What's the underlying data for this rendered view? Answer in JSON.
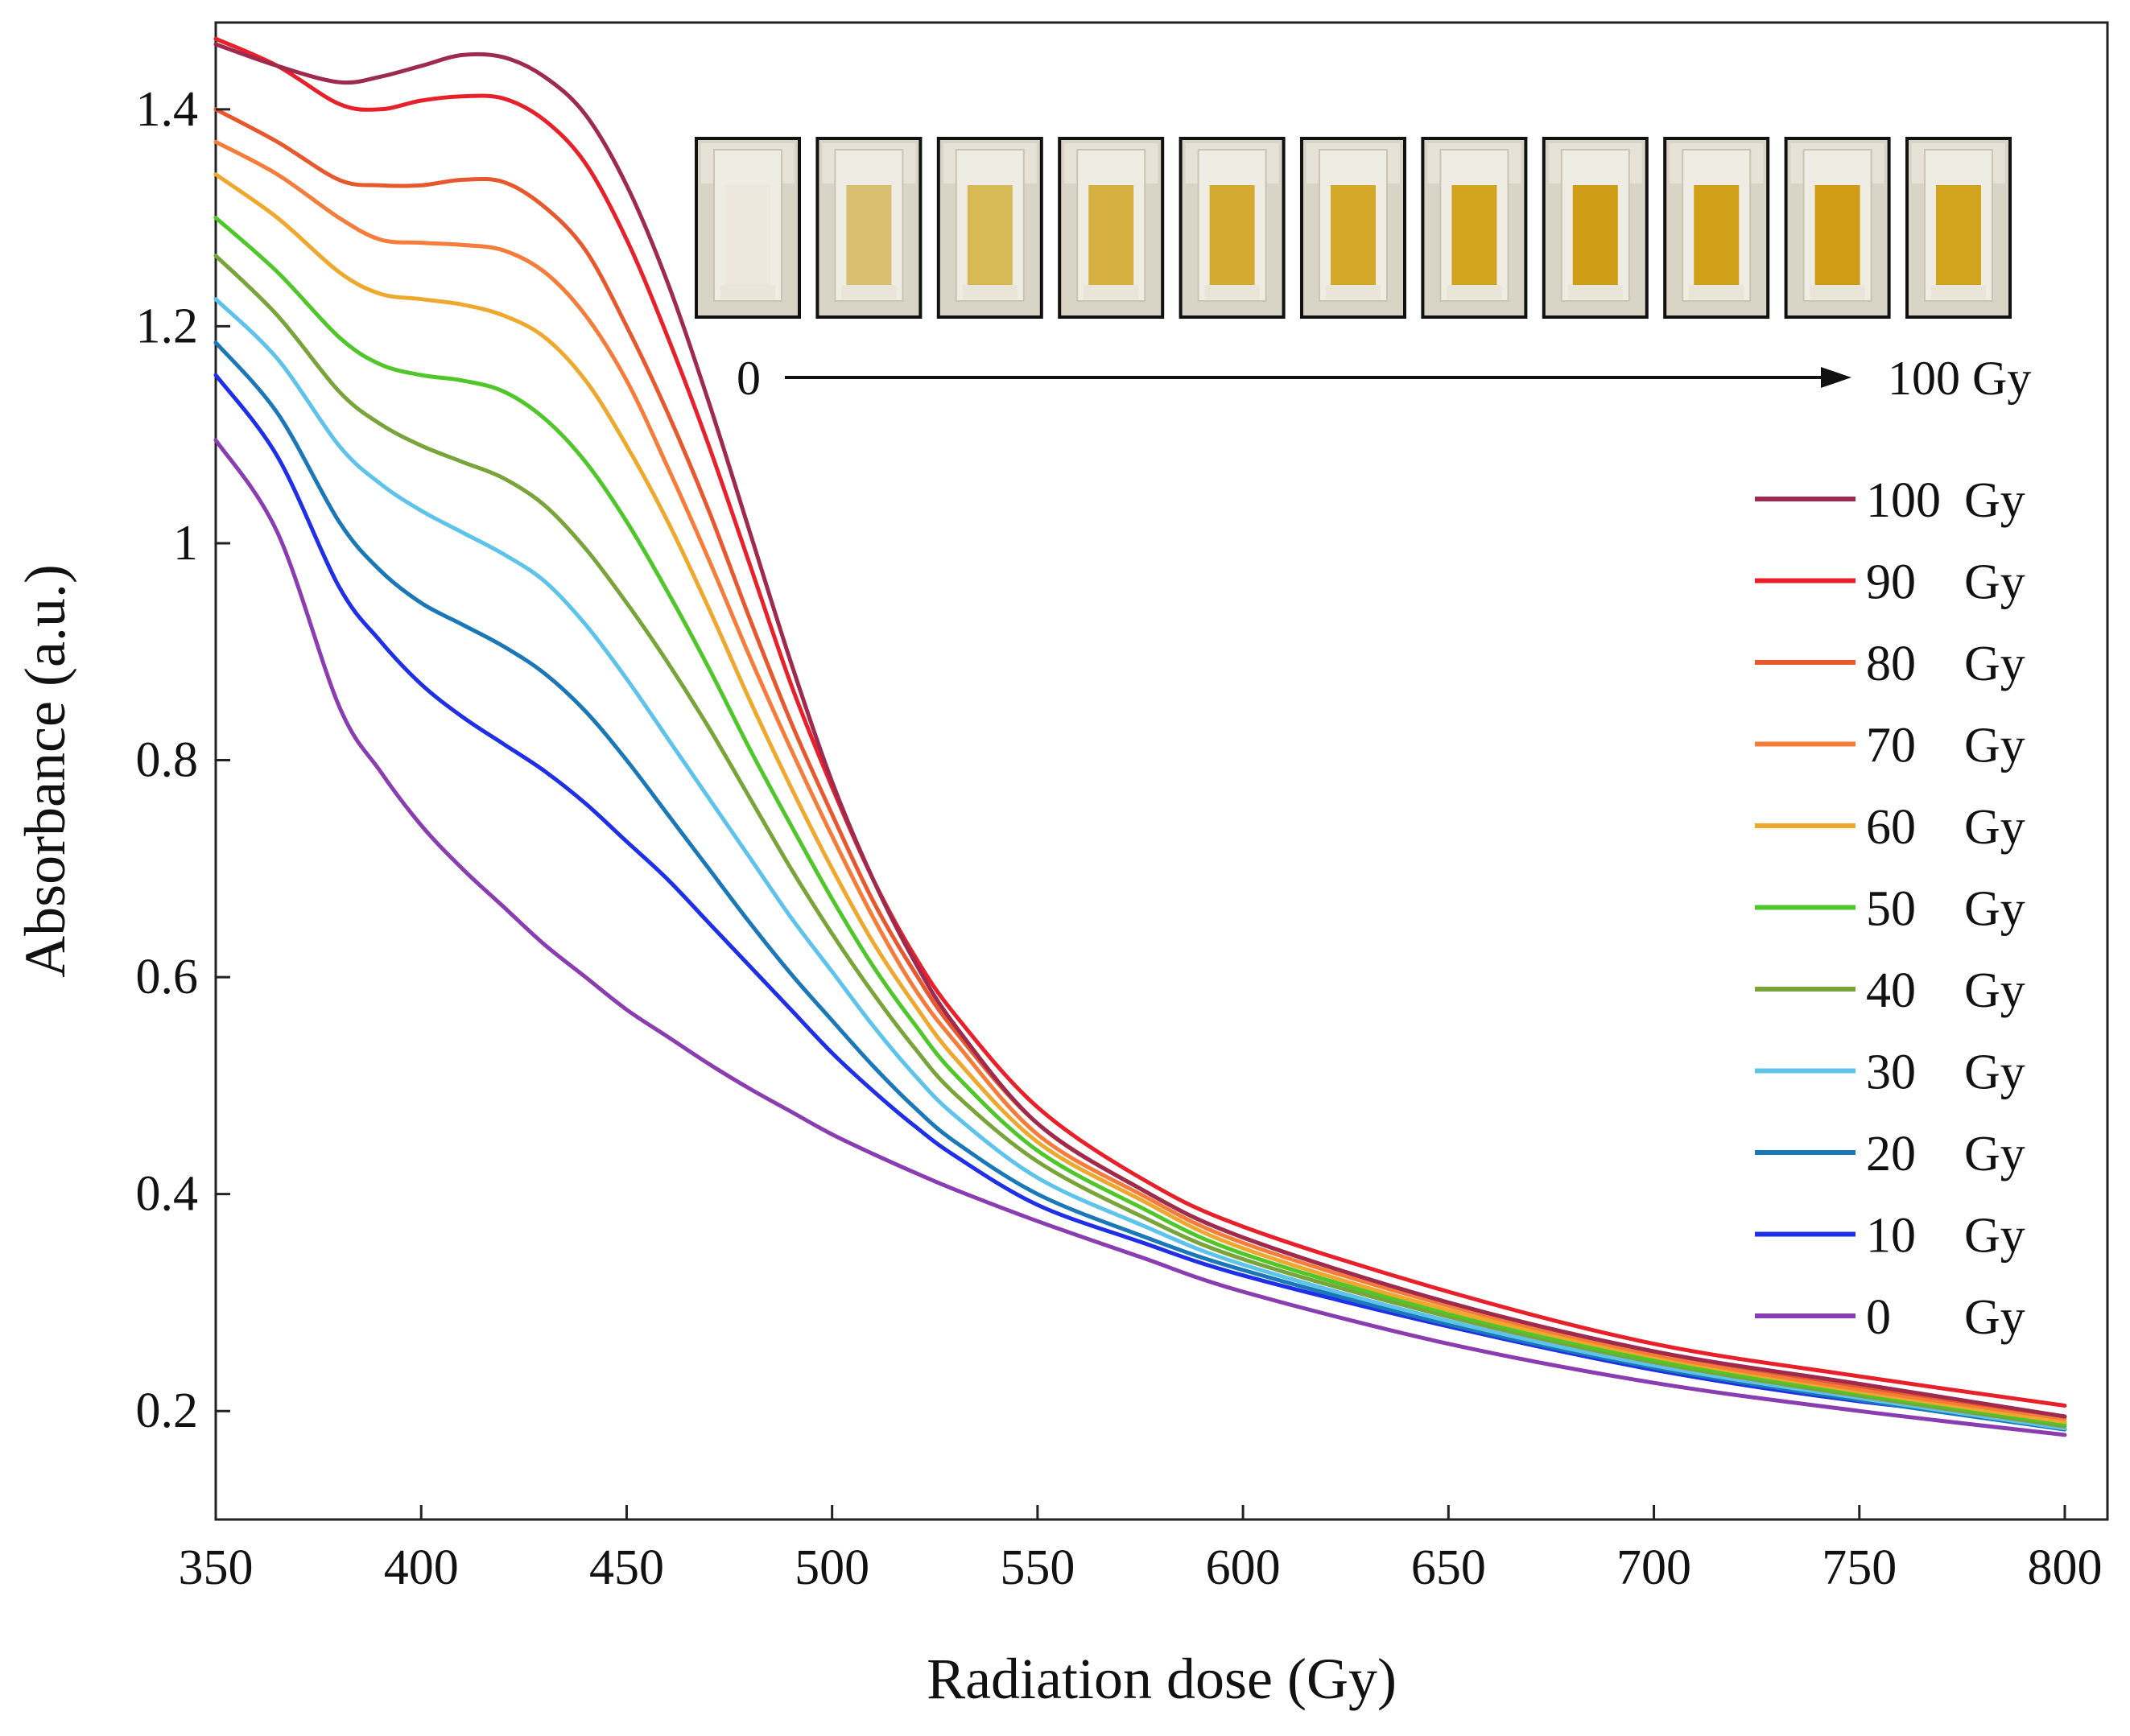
{
  "chart_data": {
    "type": "line",
    "title": "",
    "xlabel": "Radiation dose (Gy)",
    "ylabel": "Absorbance (a.u.)",
    "xlim": [
      350,
      800
    ],
    "ylim": [
      0.1,
      1.48
    ],
    "xticks": [
      350,
      400,
      450,
      500,
      550,
      600,
      650,
      700,
      750,
      800
    ],
    "xtick_labels": [
      "350",
      "400",
      "450",
      "500",
      "550",
      "600",
      "650",
      "700",
      "750",
      "800"
    ],
    "yticks": [
      0.2,
      0.4,
      0.6,
      0.8,
      1.0,
      1.2,
      1.4
    ],
    "ytick_labels": [
      "0.2",
      "0.4",
      "0.6",
      "0.8",
      "1",
      "1.2",
      "1.4"
    ],
    "grid": false,
    "legend_position": "right",
    "x": [
      350,
      365,
      380,
      390,
      400,
      410,
      420,
      430,
      440,
      450,
      460,
      470,
      480,
      490,
      500,
      510,
      520,
      530,
      550,
      575,
      600,
      650,
      700,
      750,
      800
    ],
    "series": [
      {
        "name": "100 Gy",
        "label_num": "100",
        "label_unit": "Gy",
        "color": "#9e2a4e",
        "values": [
          1.46,
          1.44,
          1.425,
          1.43,
          1.44,
          1.45,
          1.448,
          1.43,
          1.395,
          1.33,
          1.24,
          1.13,
          1.01,
          0.89,
          0.78,
          0.69,
          0.615,
          0.555,
          0.465,
          0.405,
          0.36,
          0.3,
          0.255,
          0.225,
          0.195
        ]
      },
      {
        "name": "90 Gy",
        "label_num": "90",
        "label_unit": "Gy",
        "color": "#e8202a",
        "values": [
          1.465,
          1.44,
          1.405,
          1.4,
          1.408,
          1.412,
          1.41,
          1.39,
          1.35,
          1.28,
          1.19,
          1.09,
          0.98,
          0.87,
          0.775,
          0.69,
          0.62,
          0.565,
          0.48,
          0.415,
          0.37,
          0.31,
          0.262,
          0.232,
          0.205
        ]
      },
      {
        "name": "80 Gy",
        "label_num": "80",
        "label_unit": "Gy",
        "color": "#e8582e",
        "values": [
          1.4,
          1.37,
          1.335,
          1.33,
          1.33,
          1.335,
          1.333,
          1.31,
          1.27,
          1.2,
          1.12,
          1.03,
          0.93,
          0.835,
          0.75,
          0.67,
          0.605,
          0.55,
          0.465,
          0.405,
          0.36,
          0.3,
          0.255,
          0.223,
          0.195
        ]
      },
      {
        "name": "70 Gy",
        "label_num": "70",
        "label_unit": "Gy",
        "color": "#f57c3a",
        "values": [
          1.37,
          1.34,
          1.3,
          1.28,
          1.277,
          1.275,
          1.27,
          1.25,
          1.21,
          1.15,
          1.07,
          0.985,
          0.895,
          0.81,
          0.73,
          0.655,
          0.59,
          0.54,
          0.455,
          0.4,
          0.355,
          0.297,
          0.252,
          0.22,
          0.193
        ]
      },
      {
        "name": "60 Gy",
        "label_num": "60",
        "label_unit": "Gy",
        "color": "#efa82e",
        "values": [
          1.34,
          1.3,
          1.25,
          1.23,
          1.225,
          1.22,
          1.21,
          1.19,
          1.15,
          1.09,
          1.02,
          0.94,
          0.855,
          0.775,
          0.7,
          0.632,
          0.575,
          0.525,
          0.448,
          0.395,
          0.35,
          0.293,
          0.25,
          0.218,
          0.19
        ]
      },
      {
        "name": "50 Gy",
        "label_num": "50",
        "label_unit": "Gy",
        "color": "#4fc72a",
        "values": [
          1.3,
          1.25,
          1.19,
          1.165,
          1.155,
          1.15,
          1.14,
          1.115,
          1.075,
          1.02,
          0.955,
          0.885,
          0.81,
          0.74,
          0.672,
          0.61,
          0.557,
          0.51,
          0.44,
          0.388,
          0.345,
          0.29,
          0.247,
          0.216,
          0.188
        ]
      },
      {
        "name": "40 Gy",
        "label_num": "40",
        "label_unit": "Gy",
        "color": "#78a43a",
        "values": [
          1.265,
          1.21,
          1.14,
          1.11,
          1.09,
          1.075,
          1.06,
          1.035,
          0.995,
          0.945,
          0.89,
          0.83,
          0.765,
          0.7,
          0.64,
          0.585,
          0.535,
          0.492,
          0.43,
          0.38,
          0.34,
          0.287,
          0.245,
          0.214,
          0.186
        ]
      },
      {
        "name": "30 Gy",
        "label_num": "30",
        "label_unit": "Gy",
        "color": "#5ec3ea",
        "values": [
          1.225,
          1.17,
          1.09,
          1.055,
          1.03,
          1.01,
          0.99,
          0.965,
          0.925,
          0.875,
          0.82,
          0.765,
          0.71,
          0.655,
          0.605,
          0.555,
          0.51,
          0.472,
          0.415,
          0.372,
          0.335,
          0.283,
          0.242,
          0.212,
          0.184
        ]
      },
      {
        "name": "20 Gy",
        "label_num": "20",
        "label_unit": "Gy",
        "color": "#1b78b8",
        "values": [
          1.185,
          1.12,
          1.02,
          0.975,
          0.945,
          0.925,
          0.905,
          0.88,
          0.845,
          0.8,
          0.75,
          0.7,
          0.65,
          0.603,
          0.56,
          0.518,
          0.48,
          0.448,
          0.4,
          0.362,
          0.33,
          0.28,
          0.24,
          0.21,
          0.183
        ]
      },
      {
        "name": "10 Gy",
        "label_num": "10",
        "label_unit": "Gy",
        "color": "#1f2fe8",
        "values": [
          1.155,
          1.08,
          0.96,
          0.91,
          0.87,
          0.84,
          0.815,
          0.79,
          0.76,
          0.725,
          0.69,
          0.65,
          0.61,
          0.57,
          0.53,
          0.495,
          0.463,
          0.435,
          0.39,
          0.356,
          0.325,
          0.278,
          0.238,
          0.209,
          0.19
        ]
      },
      {
        "name": "0 Gy",
        "label_num": "0",
        "label_unit": "Gy",
        "color": "#8a3db0",
        "values": [
          1.095,
          1.01,
          0.85,
          0.79,
          0.74,
          0.7,
          0.665,
          0.63,
          0.6,
          0.57,
          0.545,
          0.52,
          0.497,
          0.476,
          0.455,
          0.437,
          0.42,
          0.404,
          0.375,
          0.342,
          0.31,
          0.262,
          0.226,
          0.2,
          0.178
        ]
      }
    ],
    "inset": {
      "start_label": "0",
      "end_label": "100 Gy",
      "vial_fill_colors": [
        "#ece8de",
        "#d9c070",
        "#d7b955",
        "#d6b040",
        "#d4aa30",
        "#d4a828",
        "#d3a420",
        "#cf9e16",
        "#d0a018",
        "#cf9c14",
        "#d2a41e"
      ]
    }
  }
}
